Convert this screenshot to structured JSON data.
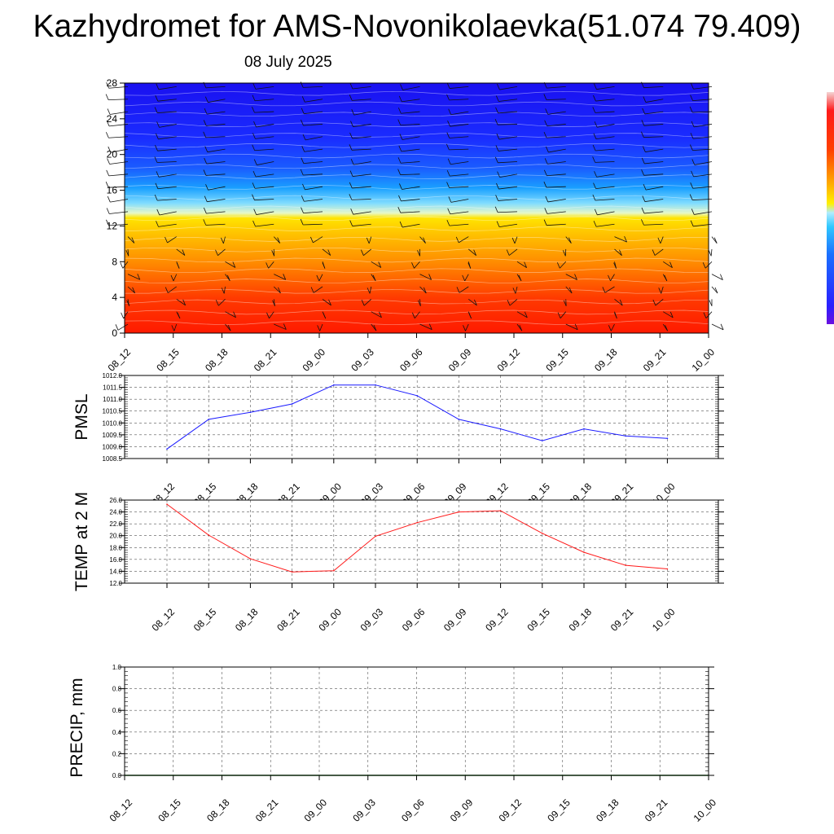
{
  "title": "Kazhydromet for AMS-Novonikolaevka(51.074 79.409)",
  "subtitle": "08 July 2025",
  "colors": {
    "pmsl_line": "#1a1aff",
    "temp_line": "#ff1a1a",
    "precip_line": "#1d6b1d",
    "grid": "#555555"
  },
  "chart_data": [
    {
      "type": "heatmap",
      "title": "",
      "xlabel": "",
      "ylabel": "",
      "x": [
        "08_12",
        "08_15",
        "08_18",
        "08_21",
        "09_00",
        "09_03",
        "09_06",
        "09_09",
        "09_12",
        "09_15",
        "09_18",
        "09_21",
        "10_00"
      ],
      "y_ticks": [
        0,
        4,
        8,
        12,
        16,
        20,
        24,
        28
      ],
      "ylim": [
        0,
        28
      ],
      "colorbar": "blue (top) to red (bottom), unlabeled",
      "overlay": "wind barbs"
    },
    {
      "type": "line",
      "title": "",
      "ylabel": "PMSL",
      "categories": [
        "08_12",
        "08_15",
        "08_18",
        "08_21",
        "09_00",
        "09_03",
        "09_06",
        "09_09",
        "09_12",
        "09_15",
        "09_18",
        "09_21",
        "10_00"
      ],
      "values": [
        1008.9,
        1010.15,
        1010.45,
        1010.8,
        1011.6,
        1011.6,
        1011.15,
        1010.15,
        1009.75,
        1009.25,
        1009.75,
        1009.45,
        1009.35
      ],
      "ylim": [
        1008.5,
        1012.0
      ],
      "y_ticks": [
        "1008.5",
        "1009.0",
        "1009.5",
        "1010.0",
        "1010.5",
        "1011.0",
        "1011.5",
        "1012.0"
      ],
      "grid": true
    },
    {
      "type": "line",
      "title": "",
      "ylabel": "TEMP at 2 M",
      "categories": [
        "08_12",
        "08_15",
        "08_18",
        "08_21",
        "09_00",
        "09_03",
        "09_06",
        "09_09",
        "09_12",
        "09_15",
        "09_18",
        "09_21",
        "10_00"
      ],
      "values": [
        25.3,
        20.1,
        16.1,
        13.9,
        14.1,
        19.9,
        22.2,
        24.0,
        24.2,
        20.4,
        17.2,
        15.0,
        14.4
      ],
      "ylim": [
        12.0,
        26.0
      ],
      "y_ticks": [
        "12.0",
        "14.0",
        "16.0",
        "18.0",
        "20.0",
        "22.0",
        "24.0",
        "26.0"
      ],
      "grid": true
    },
    {
      "type": "line",
      "title": "",
      "ylabel": "PRECIP, mm",
      "categories": [
        "08_12",
        "08_15",
        "08_18",
        "08_21",
        "09_00",
        "09_03",
        "09_06",
        "09_09",
        "09_12",
        "09_15",
        "09_18",
        "09_21",
        "10_00"
      ],
      "values": [
        0,
        0,
        0,
        0,
        0,
        0,
        0,
        0,
        0,
        0,
        0,
        0,
        0
      ],
      "ylim": [
        0.0,
        1.0
      ],
      "y_ticks": [
        "0.0",
        "0.2",
        "0.4",
        "0.6",
        "0.8",
        "1.0"
      ],
      "grid": true
    }
  ]
}
